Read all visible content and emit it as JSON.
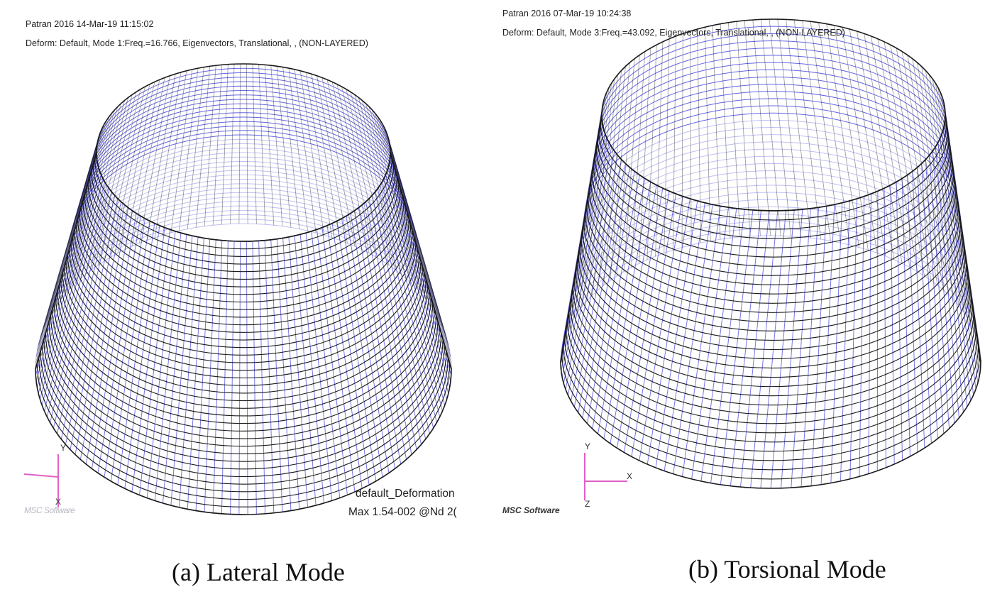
{
  "colors": {
    "mesh_outer": "#1a1a1a",
    "mesh_inner": "#4a4ae0",
    "axis": "#e060c8"
  },
  "panel_a": {
    "header_line1": "Patran 2016 14-Mar-19 11:15:02",
    "header_line2": "Deform: Default, Mode 1:Freq.=16.766, Eigenvectors, Translational, , (NON-LAYERED)",
    "legend_line1": "default_Deformation",
    "legend_line2": "Max 1.54-002 @Nd 2(",
    "axis_y": "Y",
    "axis_x": "X",
    "logo_text": "MSC Software",
    "caption": "(a) Lateral Mode"
  },
  "panel_b": {
    "header_line1": "Patran 2016 07-Mar-19 10:24:38",
    "header_line2": "Deform: Default, Mode 3:Freq.=43.092, Eigenvectors, Translational, , (NON-LAYERED)",
    "axis_y": "Y",
    "axis_x": "X",
    "axis_z": "Z",
    "logo_text": "MSC Software",
    "caption": "(b) Torsional Mode"
  }
}
